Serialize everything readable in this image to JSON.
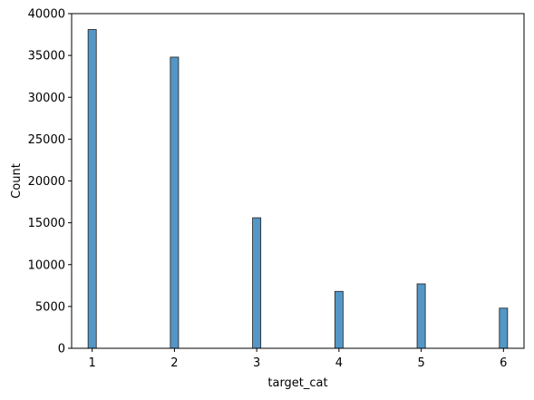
{
  "chart_data": {
    "type": "bar",
    "subtype": "histogram",
    "xlabel": "target_cat",
    "ylabel": "Count",
    "xlim": [
      0.75,
      6.25
    ],
    "ylim": [
      0,
      40000
    ],
    "xticks": [
      1,
      2,
      3,
      4,
      5,
      6
    ],
    "yticks": [
      0,
      5000,
      10000,
      15000,
      20000,
      25000,
      30000,
      35000,
      40000
    ],
    "grid": false,
    "bin_width": 0.1,
    "categories": [
      1,
      2,
      3,
      4,
      5,
      6
    ],
    "values": [
      38100,
      34800,
      15600,
      6800,
      7700,
      4800
    ],
    "bar_color": "#5496c6",
    "bar_edge_color": "#1f1f1f"
  }
}
